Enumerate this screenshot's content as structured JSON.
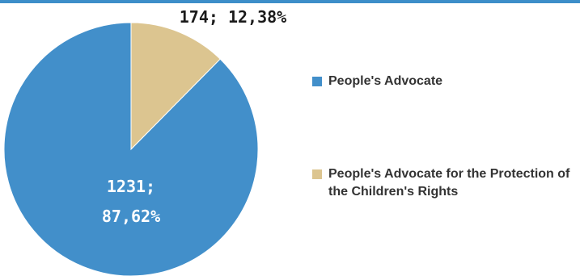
{
  "chart_data": {
    "type": "pie",
    "slices": [
      {
        "name": "People's Advocate for the Protection of the Children's Rights",
        "value": 174,
        "percent": 12.38,
        "label": "174; 12,38%",
        "color": "#dcc590",
        "label_color": "#1a1a1a"
      },
      {
        "name": "People's Advocate",
        "value": 1231,
        "percent": 87.62,
        "label_line1": "1231;",
        "label_line2": "87,62%",
        "color": "#428fca",
        "label_color": "#ffffff"
      }
    ],
    "start_angle": "12 o'clock",
    "direction": "clockwise"
  },
  "legend": {
    "position": "right",
    "items": [
      {
        "label": "People's Advocate",
        "color": "#428fca"
      },
      {
        "label": "People's Advocate for the Protection of the Children's Rights",
        "color": "#dcc590"
      }
    ]
  },
  "colors": {
    "top_rule": "#3d8ec9"
  }
}
